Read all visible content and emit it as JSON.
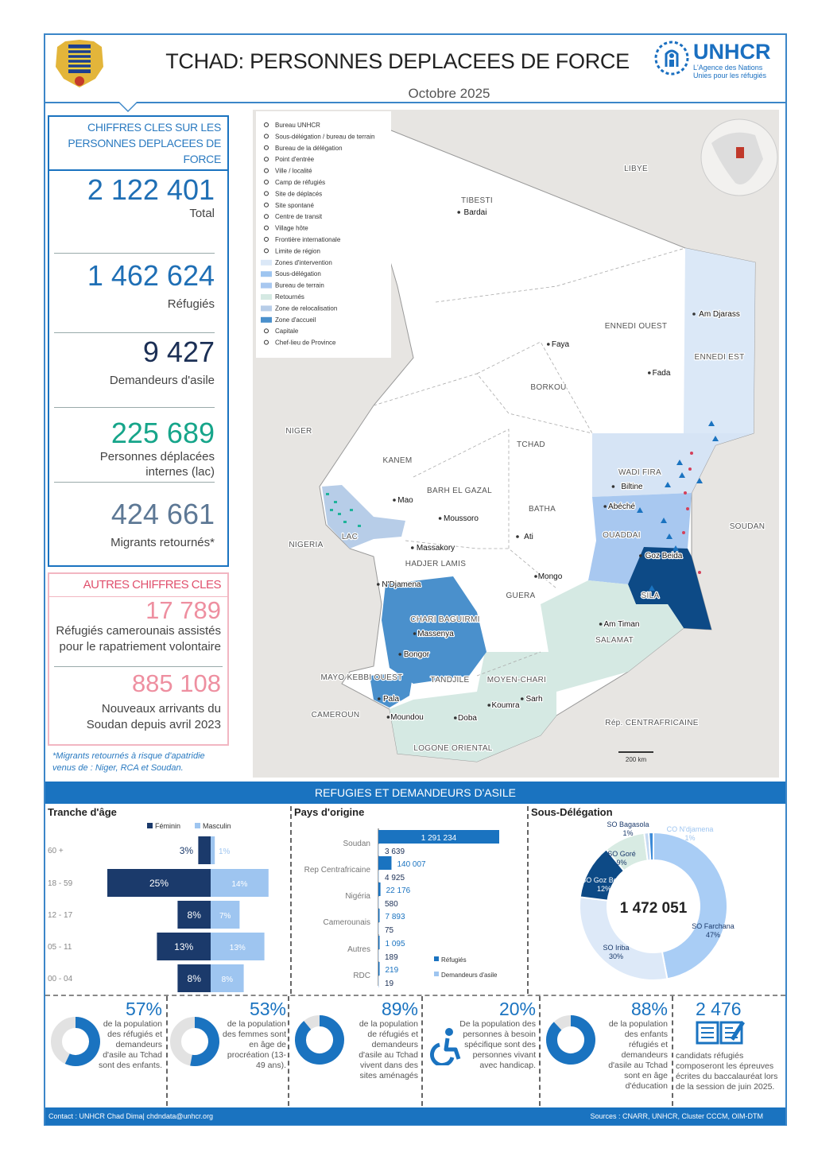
{
  "header": {
    "title": "TCHAD: PERSONNES DEPLACEES DE FORCE",
    "date": "Octobre 2025",
    "logo": "UNHCR",
    "logo_sub1": "L'Agence des Nations",
    "logo_sub2": "Unies pour les réfugiés"
  },
  "key": {
    "heading": "CHIFFRES CLES SUR LES PERSONNES DEPLACEES DE FORCE",
    "items": [
      {
        "value": "2 122 401",
        "label": "Total",
        "color": "#1f6fb5"
      },
      {
        "value": "1 462 624",
        "label": "Réfugiés",
        "color": "#1f6fb5"
      },
      {
        "value": "9 427",
        "label": "Demandeurs d'asile",
        "color": "#1b2f55"
      },
      {
        "value": "225 689",
        "label": "Personnes déplacées internes (lac)",
        "color": "#16a58a"
      },
      {
        "value": "424 661",
        "label": "Migrants retournés*",
        "color": "#5d7895"
      }
    ]
  },
  "other": {
    "heading": "AUTRES CHIFFRES CLES",
    "items": [
      {
        "value": "17 789",
        "label": "Réfugiés camerounais assistés pour le rapatriement volontaire"
      },
      {
        "value": "885 108",
        "label": "Nouveaux arrivants du Soudan depuis avril 2023"
      }
    ]
  },
  "note": "*Migrants retournés à risque d'apatridie venus de : Niger, RCA et Soudan.",
  "map": {
    "labels": [
      "LIBYE",
      "TIBESTI",
      "Bardai",
      "ENNEDI OUEST",
      "ENNEDI EST",
      "Fada",
      "Faya",
      "BORKOU",
      "NIGER",
      "TCHAD",
      "KANEM",
      "Mao",
      "BARH EL GAZAL",
      "Moussoro",
      "LAC",
      "NIGERIA",
      "N'Djamena",
      "HADJER LAMIS",
      "Massakory",
      "BATHA",
      "Ati",
      "WADI FIRA",
      "Biltine",
      "OUADDAI",
      "Abéché",
      "SILA",
      "Goz Beida",
      "SOUDAN",
      "GUERA",
      "Mongo",
      "SALAMAT",
      "Am Timan",
      "MOYEN-CHARI",
      "Sarh",
      "CAMEROUN",
      "Rép. CENTRAFRICAINE",
      "Pala",
      "Bongor",
      "Moundou",
      "Doba",
      "Koumra",
      "TANDJILE",
      "LOGONE ORIENTAL",
      "MAYO KEBBI OUEST",
      "Massenya",
      "CHARI BAGUIRMI",
      "Am Djarass"
    ],
    "legend": [
      "Bureau UNHCR",
      "Sous-délégation / bureau de terrain",
      "Bureau de la délégation",
      "Point d'entrée",
      "Ville / localité",
      "Camp de réfugiés",
      "Site de déplacés",
      "Site spontané",
      "Centre de transit",
      "Village hôte",
      "Frontière internationale",
      "Limite de région",
      "Zones d'intervention",
      "Sous-délégation",
      "Bureau de terrain",
      "Retournés",
      "Zone de relocalisation",
      "Zone d'accueil",
      "Capitale",
      "Chef-lieu de Province"
    ],
    "scale": "200 km"
  },
  "section_band": "REFUGIES ET DEMANDEURS D'ASILE",
  "footer": {
    "contact": "Contact : UNHCR Chad Dima| chdndata@unhcr.org",
    "sources": "Sources : CNARR, UNHCR, Cluster CCCM, OIM-DTM"
  },
  "stats": [
    {
      "value": "57%",
      "text": "de la population des réfugiés et demandeurs d'asile au Tchad sont des enfants.",
      "fraction": 0.57,
      "icon": "donut-icon"
    },
    {
      "value": "53%",
      "text": "de la population des femmes sont en âge de procréation (13-49 ans).",
      "fraction": 0.53,
      "icon": "donut-icon"
    },
    {
      "value": "89%",
      "text": "de la population de réfugiés et demandeurs d'asile au Tchad vivent dans des sites aménagés",
      "fraction": 0.89,
      "icon": "donut-icon"
    },
    {
      "value": "20%",
      "text": "De la population des personnes à besoin spécifique sont des personnes vivant avec handicap.",
      "icon": "wheelchair-icon"
    },
    {
      "value": "88%",
      "text": "de la population des enfants réfugiés et demandeurs d'asile au Tchad sont en âge d'éducation",
      "fraction": 0.88,
      "icon": "donut-icon"
    },
    {
      "value": "2 476",
      "text": "candidats réfugiés composeront les épreuves écrites du baccalauréat lors de la session de juin 2025.",
      "icon": "book-icon"
    }
  ],
  "chart_data": [
    {
      "type": "bar",
      "title": "Tranche d'âge",
      "legend": [
        "Féminin",
        "Masculin"
      ],
      "colors": [
        "#1b3a6b",
        "#9ec5f0"
      ],
      "categories": [
        "60 +",
        "18 - 59",
        "12 - 17",
        "05 - 11",
        "00 - 04"
      ],
      "series": [
        {
          "name": "Féminin",
          "values": [
            3,
            25,
            8,
            13,
            8
          ]
        },
        {
          "name": "Masculin",
          "values": [
            1,
            14,
            7,
            13,
            8
          ]
        }
      ],
      "unit": "%"
    },
    {
      "type": "bar",
      "title": "Pays d'origine",
      "legend": [
        "Réfugiés",
        "Demandeurs d'asile"
      ],
      "colors": [
        "#1a73c0",
        "#9ec5f0"
      ],
      "categories": [
        "Soudan",
        "Rep Centrafricaine",
        "Nigéria",
        "Camerounais",
        "Autres",
        "RDC"
      ],
      "series": [
        {
          "name": "Réfugiés",
          "values": [
            1291234,
            140007,
            22176,
            7893,
            1095,
            219
          ],
          "labels": [
            "1 291 234",
            "140 007",
            "22 176",
            "7 893",
            "1 095",
            "219"
          ]
        },
        {
          "name": "Demandeurs d'asile",
          "values": [
            3639,
            4925,
            580,
            75,
            189,
            19
          ],
          "labels": [
            "3 639",
            "4 925",
            "580",
            "75",
            "189",
            "19"
          ]
        }
      ]
    },
    {
      "type": "pie",
      "title": "Sous-Délégation",
      "total": "1 472 051",
      "slices": [
        {
          "name": "SO Farchana",
          "value": 47,
          "label": "47%",
          "color": "#a9cdf5"
        },
        {
          "name": "SO Iriba",
          "value": 30,
          "label": "30%",
          "color": "#dde9f8"
        },
        {
          "name": "SO Goz Beida",
          "value": 12,
          "label": "12%",
          "color": "#0d4a86"
        },
        {
          "name": "SO Goré",
          "value": 9,
          "label": "9%",
          "color": "#d8ebe3"
        },
        {
          "name": "SO Bagasola",
          "value": 1,
          "label": "1%",
          "color": "#c5d9f2"
        },
        {
          "name": "CO N'djamena",
          "value": 1,
          "label": "1%",
          "color": "#3b8ad8"
        }
      ]
    }
  ]
}
